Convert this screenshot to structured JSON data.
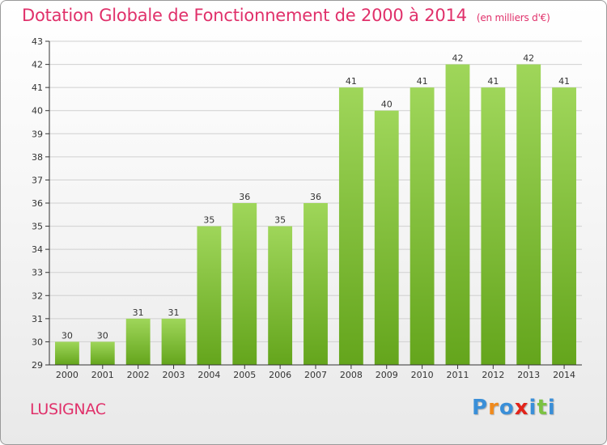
{
  "chart_data": {
    "type": "bar",
    "title": "Dotation Globale de Fonctionnement de 2000 à 2014",
    "subtitle": "(en milliers d'€)",
    "categories": [
      "2000",
      "2001",
      "2002",
      "2003",
      "2004",
      "2005",
      "2006",
      "2007",
      "2008",
      "2009",
      "2010",
      "2011",
      "2012",
      "2013",
      "2014"
    ],
    "values": [
      30,
      30,
      31,
      31,
      35,
      36,
      35,
      36,
      41,
      40,
      41,
      42,
      41,
      42,
      41
    ],
    "ylim": [
      29,
      43
    ],
    "yticks": [
      29,
      30,
      31,
      32,
      33,
      34,
      35,
      36,
      37,
      38,
      39,
      40,
      41,
      42,
      43
    ],
    "grid": true,
    "bar_color_top": "#9fd65a",
    "bar_color_bottom": "#64a51c"
  },
  "footer": {
    "commune": "LUSIGNAC",
    "logo_text": "Proxiti",
    "logo_colors": [
      "#3a8fd8",
      "#f08a1c",
      "#3a8fd8",
      "#e2231a",
      "#3a8fd8",
      "#7cc242",
      "#3a8fd8"
    ]
  },
  "colors": {
    "title": "#e0306a",
    "grid": "#d0d0d0",
    "axis": "#333333"
  }
}
